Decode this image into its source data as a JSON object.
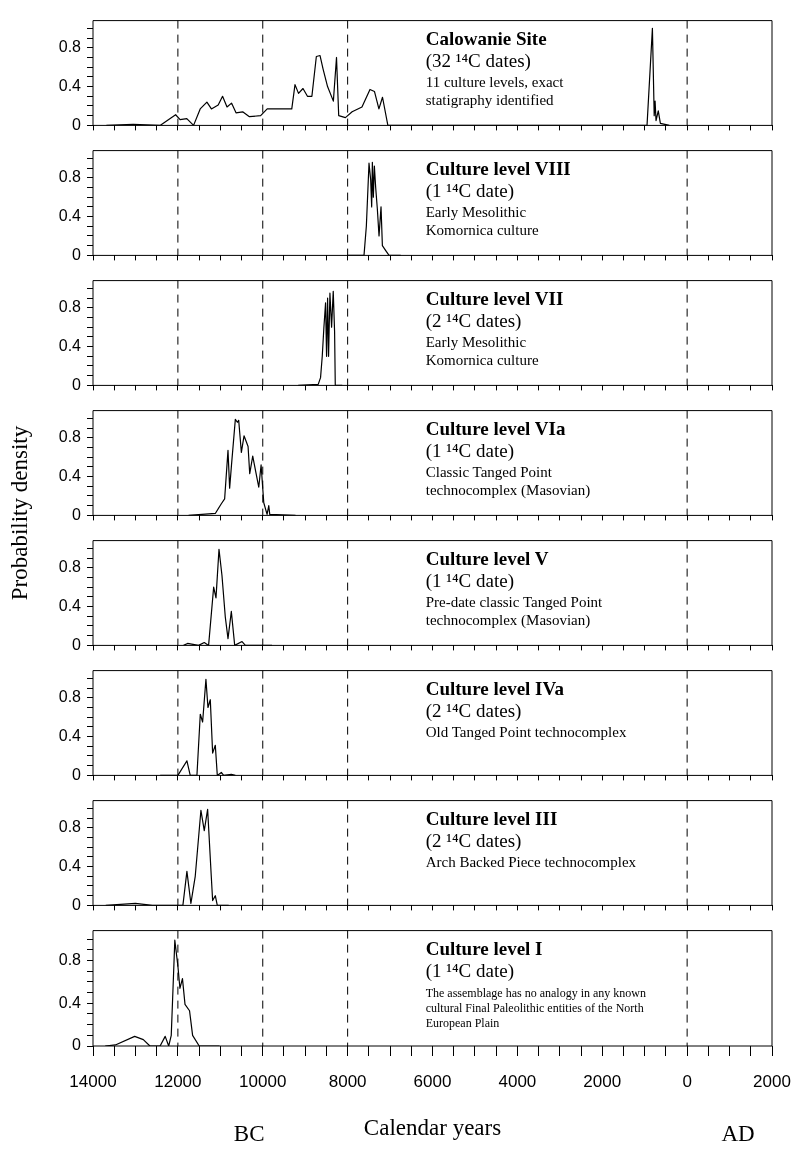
{
  "chart_data": [
    {
      "type": "line",
      "title": "Calowanie Site",
      "subtitle": "(32 ¹⁴C dates)",
      "annotations": [
        "11 culture levels, exact",
        "statigraphy identified"
      ],
      "color": "#000000",
      "marker": "none",
      "tick_labels": "y",
      "xlim": [
        -14000,
        2000
      ],
      "ylim": [
        0,
        1.08
      ],
      "xticks": [
        {
          "value": -14000,
          "label": null
        },
        {
          "value": -13500,
          "label": null
        },
        {
          "value": -13000,
          "label": null
        },
        {
          "value": -12500,
          "label": null
        },
        {
          "value": -12000,
          "label": null
        },
        {
          "value": -11500,
          "label": null
        },
        {
          "value": -11000,
          "label": null
        },
        {
          "value": -10500,
          "label": null
        },
        {
          "value": -10000,
          "label": null
        },
        {
          "value": -9500,
          "label": null
        },
        {
          "value": -9000,
          "label": null
        },
        {
          "value": -8500,
          "label": null
        },
        {
          "value": -8000,
          "label": null
        },
        {
          "value": -7500,
          "label": null
        },
        {
          "value": -7000,
          "label": null
        },
        {
          "value": -6500,
          "label": null
        },
        {
          "value": -6000,
          "label": null
        },
        {
          "value": -5500,
          "label": null
        },
        {
          "value": -5000,
          "label": null
        },
        {
          "value": -4500,
          "label": null
        },
        {
          "value": -4000,
          "label": null
        },
        {
          "value": -3500,
          "label": null
        },
        {
          "value": -3000,
          "label": null
        },
        {
          "value": -2500,
          "label": null
        },
        {
          "value": -2000,
          "label": null
        },
        {
          "value": -1500,
          "label": null
        },
        {
          "value": -1000,
          "label": null
        },
        {
          "value": -500,
          "label": null
        },
        {
          "value": 0,
          "label": null
        },
        {
          "value": 500,
          "label": null
        },
        {
          "value": 1000,
          "label": null
        },
        {
          "value": 1500,
          "label": null
        },
        {
          "value": 2000,
          "label": null
        }
      ],
      "yticks": [
        0,
        {
          "value": 0.1,
          "label": null
        },
        {
          "value": 0.2,
          "label": null
        },
        {
          "value": 0.3,
          "label": null
        },
        0.4,
        {
          "value": 0.5,
          "label": null
        },
        {
          "value": 0.6,
          "label": null
        },
        {
          "value": 0.7,
          "label": null
        },
        0.8,
        {
          "value": 0.9,
          "label": null
        },
        {
          "value": 1.0,
          "label": null
        }
      ],
      "ref_lines": [
        {
          "axis": "x",
          "value": -12000,
          "line_style": "dashed"
        },
        {
          "axis": "x",
          "value": -10000,
          "line_style": "dashed"
        },
        {
          "axis": "x",
          "value": -8000,
          "line_style": "dashed"
        },
        {
          "axis": "x",
          "value": 0,
          "line_style": "dashed"
        }
      ],
      "x": [
        -13685,
        -13053,
        -12420,
        -12053,
        -11947,
        -11790,
        -11630,
        -11474,
        -11316,
        -11210,
        -11050,
        -10947,
        -10842,
        -10736,
        -10630,
        -10473,
        -10315,
        -10050,
        -9895,
        -9684,
        -9316,
        -9240,
        -9157,
        -9052,
        -8947,
        -8842,
        -8737,
        -8650,
        -8578,
        -8473,
        -8336,
        -8262,
        -8210,
        -8052,
        -7894,
        -7662,
        -7473,
        -7368,
        -7263,
        -7178,
        -7052,
        -6735,
        -945,
        -818,
        -776,
        -755,
        -733,
        -680,
        -630,
        -524,
        -420
      ],
      "values": [
        0,
        0.01,
        0,
        0.11,
        0.06,
        0.07,
        0,
        0.17,
        0.24,
        0.17,
        0.21,
        0.3,
        0.19,
        0.23,
        0.13,
        0.14,
        0.09,
        0.1,
        0.17,
        0.17,
        0.17,
        0.42,
        0.33,
        0.38,
        0.3,
        0.3,
        0.71,
        0.72,
        0.58,
        0.4,
        0.25,
        0.7,
        0.1,
        0.08,
        0.14,
        0.19,
        0.37,
        0.35,
        0.17,
        0.29,
        0,
        0,
        0,
        1.0,
        0.1,
        0.25,
        0.05,
        0.15,
        0.02,
        0.01,
        0
      ]
    },
    {
      "type": "line",
      "title": "Culture level VIII",
      "subtitle": "(1 ¹⁴C date)",
      "annotations": [
        "Early Mesolithic",
        "Komornica culture"
      ],
      "color": "#000000",
      "marker": "none",
      "tick_labels": "y",
      "xlim": [
        -14000,
        2000
      ],
      "ylim": [
        0,
        1.08
      ],
      "xticks": [
        {
          "value": -14000,
          "label": null
        },
        {
          "value": -13500,
          "label": null
        },
        {
          "value": -13000,
          "label": null
        },
        {
          "value": -12500,
          "label": null
        },
        {
          "value": -12000,
          "label": null
        },
        {
          "value": -11500,
          "label": null
        },
        {
          "value": -11000,
          "label": null
        },
        {
          "value": -10500,
          "label": null
        },
        {
          "value": -10000,
          "label": null
        },
        {
          "value": -9500,
          "label": null
        },
        {
          "value": -9000,
          "label": null
        },
        {
          "value": -8500,
          "label": null
        },
        {
          "value": -8000,
          "label": null
        },
        {
          "value": -7500,
          "label": null
        },
        {
          "value": -7000,
          "label": null
        },
        {
          "value": -6500,
          "label": null
        },
        {
          "value": -6000,
          "label": null
        },
        {
          "value": -5500,
          "label": null
        },
        {
          "value": -5000,
          "label": null
        },
        {
          "value": -4500,
          "label": null
        },
        {
          "value": -4000,
          "label": null
        },
        {
          "value": -3500,
          "label": null
        },
        {
          "value": -3000,
          "label": null
        },
        {
          "value": -2500,
          "label": null
        },
        {
          "value": -2000,
          "label": null
        },
        {
          "value": -1500,
          "label": null
        },
        {
          "value": -1000,
          "label": null
        },
        {
          "value": -500,
          "label": null
        },
        {
          "value": 0,
          "label": null
        },
        {
          "value": 500,
          "label": null
        },
        {
          "value": 1000,
          "label": null
        },
        {
          "value": 1500,
          "label": null
        },
        {
          "value": 2000,
          "label": null
        }
      ],
      "yticks": [
        0,
        {
          "value": 0.1,
          "label": null
        },
        {
          "value": 0.2,
          "label": null
        },
        {
          "value": 0.3,
          "label": null
        },
        0.4,
        {
          "value": 0.5,
          "label": null
        },
        {
          "value": 0.6,
          "label": null
        },
        {
          "value": 0.7,
          "label": null
        },
        0.8,
        {
          "value": 0.9,
          "label": null
        },
        {
          "value": 1.0,
          "label": null
        }
      ],
      "ref_lines": [
        {
          "axis": "x",
          "value": -12000,
          "line_style": "dashed"
        },
        {
          "axis": "x",
          "value": -10000,
          "line_style": "dashed"
        },
        {
          "axis": "x",
          "value": -8000,
          "line_style": "dashed"
        },
        {
          "axis": "x",
          "value": 0,
          "line_style": "dashed"
        }
      ],
      "x": [
        -8000,
        -7614,
        -7559,
        -7496,
        -7457,
        -7433,
        -7417,
        -7394,
        -7370,
        -7339,
        -7300,
        -7260,
        -7213,
        -7181,
        -7102,
        -7024,
        -6748
      ],
      "values": [
        0,
        0,
        0.3,
        0.95,
        0.78,
        0.5,
        0.96,
        0.6,
        0.92,
        0.7,
        0.48,
        0.2,
        0.5,
        0.1,
        0.05,
        0,
        0
      ]
    },
    {
      "type": "line",
      "title": "Culture level VII",
      "subtitle": "(2 ¹⁴C dates)",
      "annotations": [
        "Early Mesolithic",
        "Komornica culture"
      ],
      "color": "#000000",
      "marker": "none",
      "tick_labels": "y",
      "xlim": [
        -14000,
        2000
      ],
      "ylim": [
        0,
        1.08
      ],
      "xticks": [
        {
          "value": -14000,
          "label": null
        },
        {
          "value": -13500,
          "label": null
        },
        {
          "value": -13000,
          "label": null
        },
        {
          "value": -12500,
          "label": null
        },
        {
          "value": -12000,
          "label": null
        },
        {
          "value": -11500,
          "label": null
        },
        {
          "value": -11000,
          "label": null
        },
        {
          "value": -10500,
          "label": null
        },
        {
          "value": -10000,
          "label": null
        },
        {
          "value": -9500,
          "label": null
        },
        {
          "value": -9000,
          "label": null
        },
        {
          "value": -8500,
          "label": null
        },
        {
          "value": -8000,
          "label": null
        },
        {
          "value": -7500,
          "label": null
        },
        {
          "value": -7000,
          "label": null
        },
        {
          "value": -6500,
          "label": null
        },
        {
          "value": -6000,
          "label": null
        },
        {
          "value": -5500,
          "label": null
        },
        {
          "value": -5000,
          "label": null
        },
        {
          "value": -4500,
          "label": null
        },
        {
          "value": -4000,
          "label": null
        },
        {
          "value": -3500,
          "label": null
        },
        {
          "value": -3000,
          "label": null
        },
        {
          "value": -2500,
          "label": null
        },
        {
          "value": -2000,
          "label": null
        },
        {
          "value": -1500,
          "label": null
        },
        {
          "value": -1000,
          "label": null
        },
        {
          "value": -500,
          "label": null
        },
        {
          "value": 0,
          "label": null
        },
        {
          "value": 500,
          "label": null
        },
        {
          "value": 1000,
          "label": null
        },
        {
          "value": 1500,
          "label": null
        },
        {
          "value": 2000,
          "label": null
        }
      ],
      "yticks": [
        0,
        {
          "value": 0.1,
          "label": null
        },
        {
          "value": 0.2,
          "label": null
        },
        {
          "value": 0.3,
          "label": null
        },
        0.4,
        {
          "value": 0.5,
          "label": null
        },
        {
          "value": 0.6,
          "label": null
        },
        {
          "value": 0.7,
          "label": null
        },
        0.8,
        {
          "value": 0.9,
          "label": null
        },
        {
          "value": 1.0,
          "label": null
        }
      ],
      "ref_lines": [
        {
          "axis": "x",
          "value": -12000,
          "line_style": "dashed"
        },
        {
          "axis": "x",
          "value": -10000,
          "line_style": "dashed"
        },
        {
          "axis": "x",
          "value": -8000,
          "line_style": "dashed"
        },
        {
          "axis": "x",
          "value": 0,
          "line_style": "dashed"
        }
      ],
      "x": [
        -9165,
        -8693,
        -8638,
        -8598,
        -8559,
        -8520,
        -8496,
        -8472,
        -8449,
        -8417,
        -8378,
        -8339,
        -8307,
        -8291,
        -8126
      ],
      "values": [
        0,
        0.01,
        0.08,
        0.3,
        0.6,
        0.85,
        0.3,
        0.9,
        0.3,
        0.95,
        0.6,
        0.97,
        0.55,
        0,
        0
      ]
    },
    {
      "type": "line",
      "title": "Culture level VIa",
      "subtitle": "(1 ¹⁴C date)",
      "annotations": [
        "Classic Tanged Point",
        "technocomplex (Masovian)"
      ],
      "ylabel": "Probability density",
      "color": "#000000",
      "marker": "none",
      "tick_labels": "y",
      "xlim": [
        -14000,
        2000
      ],
      "ylim": [
        0,
        1.08
      ],
      "xticks": [
        {
          "value": -14000,
          "label": null
        },
        {
          "value": -13500,
          "label": null
        },
        {
          "value": -13000,
          "label": null
        },
        {
          "value": -12500,
          "label": null
        },
        {
          "value": -12000,
          "label": null
        },
        {
          "value": -11500,
          "label": null
        },
        {
          "value": -11000,
          "label": null
        },
        {
          "value": -10500,
          "label": null
        },
        {
          "value": -10000,
          "label": null
        },
        {
          "value": -9500,
          "label": null
        },
        {
          "value": -9000,
          "label": null
        },
        {
          "value": -8500,
          "label": null
        },
        {
          "value": -8000,
          "label": null
        },
        {
          "value": -7500,
          "label": null
        },
        {
          "value": -7000,
          "label": null
        },
        {
          "value": -6500,
          "label": null
        },
        {
          "value": -6000,
          "label": null
        },
        {
          "value": -5500,
          "label": null
        },
        {
          "value": -5000,
          "label": null
        },
        {
          "value": -4500,
          "label": null
        },
        {
          "value": -4000,
          "label": null
        },
        {
          "value": -3500,
          "label": null
        },
        {
          "value": -3000,
          "label": null
        },
        {
          "value": -2500,
          "label": null
        },
        {
          "value": -2000,
          "label": null
        },
        {
          "value": -1500,
          "label": null
        },
        {
          "value": -1000,
          "label": null
        },
        {
          "value": -500,
          "label": null
        },
        {
          "value": 0,
          "label": null
        },
        {
          "value": 500,
          "label": null
        },
        {
          "value": 1000,
          "label": null
        },
        {
          "value": 1500,
          "label": null
        },
        {
          "value": 2000,
          "label": null
        }
      ],
      "yticks": [
        0,
        {
          "value": 0.1,
          "label": null
        },
        {
          "value": 0.2,
          "label": null
        },
        {
          "value": 0.3,
          "label": null
        },
        0.4,
        {
          "value": 0.5,
          "label": null
        },
        {
          "value": 0.6,
          "label": null
        },
        {
          "value": 0.7,
          "label": null
        },
        0.8,
        {
          "value": 0.9,
          "label": null
        },
        {
          "value": 1.0,
          "label": null
        }
      ],
      "ref_lines": [
        {
          "axis": "x",
          "value": -12000,
          "line_style": "dashed"
        },
        {
          "axis": "x",
          "value": -10000,
          "line_style": "dashed"
        },
        {
          "axis": "x",
          "value": -8000,
          "line_style": "dashed"
        },
        {
          "axis": "x",
          "value": 0,
          "line_style": "dashed"
        }
      ],
      "x": [
        -11748,
        -11118,
        -10976,
        -10898,
        -10819,
        -10780,
        -10740,
        -10646,
        -10598,
        -10567,
        -10504,
        -10441,
        -10346,
        -10307,
        -10236,
        -10094,
        -10039,
        -9976,
        -9898,
        -9858,
        -9835,
        -9228
      ],
      "values": [
        0,
        0.02,
        0.12,
        0.17,
        0.67,
        0.28,
        0.5,
        0.99,
        0.96,
        0.98,
        0.65,
        0.82,
        0.71,
        0.43,
        0.61,
        0.29,
        0.52,
        0.13,
        0.01,
        0.1,
        0.01,
        0
      ]
    },
    {
      "type": "line",
      "title": "Culture level V",
      "subtitle": "(1 ¹⁴C date)",
      "annotations": [
        "Pre-date classic Tanged Point",
        "technocomplex (Masovian)"
      ],
      "color": "#000000",
      "marker": "none",
      "tick_labels": "y",
      "xlim": [
        -14000,
        2000
      ],
      "ylim": [
        0,
        1.08
      ],
      "xticks": [
        {
          "value": -14000,
          "label": null
        },
        {
          "value": -13500,
          "label": null
        },
        {
          "value": -13000,
          "label": null
        },
        {
          "value": -12500,
          "label": null
        },
        {
          "value": -12000,
          "label": null
        },
        {
          "value": -11500,
          "label": null
        },
        {
          "value": -11000,
          "label": null
        },
        {
          "value": -10500,
          "label": null
        },
        {
          "value": -10000,
          "label": null
        },
        {
          "value": -9500,
          "label": null
        },
        {
          "value": -9000,
          "label": null
        },
        {
          "value": -8500,
          "label": null
        },
        {
          "value": -8000,
          "label": null
        },
        {
          "value": -7500,
          "label": null
        },
        {
          "value": -7000,
          "label": null
        },
        {
          "value": -6500,
          "label": null
        },
        {
          "value": -6000,
          "label": null
        },
        {
          "value": -5500,
          "label": null
        },
        {
          "value": -5000,
          "label": null
        },
        {
          "value": -4500,
          "label": null
        },
        {
          "value": -4000,
          "label": null
        },
        {
          "value": -3500,
          "label": null
        },
        {
          "value": -3000,
          "label": null
        },
        {
          "value": -2500,
          "label": null
        },
        {
          "value": -2000,
          "label": null
        },
        {
          "value": -1500,
          "label": null
        },
        {
          "value": -1000,
          "label": null
        },
        {
          "value": -500,
          "label": null
        },
        {
          "value": 0,
          "label": null
        },
        {
          "value": 500,
          "label": null
        },
        {
          "value": 1000,
          "label": null
        },
        {
          "value": 1500,
          "label": null
        },
        {
          "value": 2000,
          "label": null
        }
      ],
      "yticks": [
        0,
        {
          "value": 0.1,
          "label": null
        },
        {
          "value": 0.2,
          "label": null
        },
        {
          "value": 0.3,
          "label": null
        },
        0.4,
        {
          "value": 0.5,
          "label": null
        },
        {
          "value": 0.6,
          "label": null
        },
        {
          "value": 0.7,
          "label": null
        },
        0.8,
        {
          "value": 0.9,
          "label": null
        },
        {
          "value": 1.0,
          "label": null
        }
      ],
      "ref_lines": [
        {
          "axis": "x",
          "value": -12000,
          "line_style": "dashed"
        },
        {
          "axis": "x",
          "value": -10000,
          "line_style": "dashed"
        },
        {
          "axis": "x",
          "value": -8000,
          "line_style": "dashed"
        },
        {
          "axis": "x",
          "value": 0,
          "line_style": "dashed"
        }
      ],
      "x": [
        -11866,
        -11772,
        -11512,
        -11378,
        -11276,
        -11157,
        -11102,
        -11031,
        -10961,
        -10882,
        -10819,
        -10740,
        -10661,
        -10488,
        -10409,
        -9780
      ],
      "values": [
        0,
        0.02,
        0,
        0.03,
        0,
        0.6,
        0.49,
        0.99,
        0.72,
        0.29,
        0.07,
        0.35,
        0,
        0.04,
        0,
        0
      ]
    },
    {
      "type": "line",
      "title": "Culture level IVa",
      "subtitle": "(2 ¹⁴C dates)",
      "annotations": [
        "Old Tanged Point technocomplex"
      ],
      "color": "#000000",
      "marker": "none",
      "tick_labels": "y",
      "xlim": [
        -14000,
        2000
      ],
      "ylim": [
        0,
        1.08
      ],
      "xticks": [
        {
          "value": -14000,
          "label": null
        },
        {
          "value": -13500,
          "label": null
        },
        {
          "value": -13000,
          "label": null
        },
        {
          "value": -12500,
          "label": null
        },
        {
          "value": -12000,
          "label": null
        },
        {
          "value": -11500,
          "label": null
        },
        {
          "value": -11000,
          "label": null
        },
        {
          "value": -10500,
          "label": null
        },
        {
          "value": -10000,
          "label": null
        },
        {
          "value": -9500,
          "label": null
        },
        {
          "value": -9000,
          "label": null
        },
        {
          "value": -8500,
          "label": null
        },
        {
          "value": -8000,
          "label": null
        },
        {
          "value": -7500,
          "label": null
        },
        {
          "value": -7000,
          "label": null
        },
        {
          "value": -6500,
          "label": null
        },
        {
          "value": -6000,
          "label": null
        },
        {
          "value": -5500,
          "label": null
        },
        {
          "value": -5000,
          "label": null
        },
        {
          "value": -4500,
          "label": null
        },
        {
          "value": -4000,
          "label": null
        },
        {
          "value": -3500,
          "label": null
        },
        {
          "value": -3000,
          "label": null
        },
        {
          "value": -2500,
          "label": null
        },
        {
          "value": -2000,
          "label": null
        },
        {
          "value": -1500,
          "label": null
        },
        {
          "value": -1000,
          "label": null
        },
        {
          "value": -500,
          "label": null
        },
        {
          "value": 0,
          "label": null
        },
        {
          "value": 500,
          "label": null
        },
        {
          "value": 1000,
          "label": null
        },
        {
          "value": 1500,
          "label": null
        },
        {
          "value": 2000,
          "label": null
        }
      ],
      "yticks": [
        0,
        {
          "value": 0.1,
          "label": null
        },
        {
          "value": 0.2,
          "label": null
        },
        {
          "value": 0.3,
          "label": null
        },
        0.4,
        {
          "value": 0.5,
          "label": null
        },
        {
          "value": 0.6,
          "label": null
        },
        {
          "value": 0.7,
          "label": null
        },
        0.8,
        {
          "value": 0.9,
          "label": null
        },
        {
          "value": 1.0,
          "label": null
        }
      ],
      "ref_lines": [
        {
          "axis": "x",
          "value": -12000,
          "line_style": "dashed"
        },
        {
          "axis": "x",
          "value": -10000,
          "line_style": "dashed"
        },
        {
          "axis": "x",
          "value": -8000,
          "line_style": "dashed"
        },
        {
          "axis": "x",
          "value": 0,
          "line_style": "dashed"
        }
      ],
      "x": [
        -12417,
        -12000,
        -11787,
        -11709,
        -11551,
        -11472,
        -11417,
        -11339,
        -11291,
        -11236,
        -11181,
        -11118,
        -11071,
        -10976,
        -10921,
        -10740,
        -10646
      ],
      "values": [
        0,
        0,
        0.15,
        0,
        0,
        0.63,
        0.55,
        0.99,
        0.7,
        0.78,
        0.23,
        0.31,
        0,
        0.03,
        0,
        0.01,
        0
      ]
    },
    {
      "type": "line",
      "title": "Culture level III",
      "subtitle": "(2 ¹⁴C dates)",
      "annotations": [
        "Arch Backed Piece technocomplex"
      ],
      "color": "#000000",
      "marker": "none",
      "tick_labels": "y",
      "xlim": [
        -14000,
        2000
      ],
      "ylim": [
        0,
        1.08
      ],
      "xticks": [
        {
          "value": -14000,
          "label": null
        },
        {
          "value": -13500,
          "label": null
        },
        {
          "value": -13000,
          "label": null
        },
        {
          "value": -12500,
          "label": null
        },
        {
          "value": -12000,
          "label": null
        },
        {
          "value": -11500,
          "label": null
        },
        {
          "value": -11000,
          "label": null
        },
        {
          "value": -10500,
          "label": null
        },
        {
          "value": -10000,
          "label": null
        },
        {
          "value": -9500,
          "label": null
        },
        {
          "value": -9000,
          "label": null
        },
        {
          "value": -8500,
          "label": null
        },
        {
          "value": -8000,
          "label": null
        },
        {
          "value": -7500,
          "label": null
        },
        {
          "value": -7000,
          "label": null
        },
        {
          "value": -6500,
          "label": null
        },
        {
          "value": -6000,
          "label": null
        },
        {
          "value": -5500,
          "label": null
        },
        {
          "value": -5000,
          "label": null
        },
        {
          "value": -4500,
          "label": null
        },
        {
          "value": -4000,
          "label": null
        },
        {
          "value": -3500,
          "label": null
        },
        {
          "value": -3000,
          "label": null
        },
        {
          "value": -2500,
          "label": null
        },
        {
          "value": -2000,
          "label": null
        },
        {
          "value": -1500,
          "label": null
        },
        {
          "value": -1000,
          "label": null
        },
        {
          "value": -500,
          "label": null
        },
        {
          "value": 0,
          "label": null
        },
        {
          "value": 500,
          "label": null
        },
        {
          "value": 1000,
          "label": null
        },
        {
          "value": 1500,
          "label": null
        },
        {
          "value": 2000,
          "label": null
        }
      ],
      "yticks": [
        0,
        {
          "value": 0.1,
          "label": null
        },
        {
          "value": 0.2,
          "label": null
        },
        {
          "value": 0.3,
          "label": null
        },
        0.4,
        {
          "value": 0.5,
          "label": null
        },
        {
          "value": 0.6,
          "label": null
        },
        {
          "value": 0.7,
          "label": null
        },
        0.8,
        {
          "value": 0.9,
          "label": null
        },
        {
          "value": 1.0,
          "label": null
        }
      ],
      "ref_lines": [
        {
          "axis": "x",
          "value": -12000,
          "line_style": "dashed"
        },
        {
          "axis": "x",
          "value": -10000,
          "line_style": "dashed"
        },
        {
          "axis": "x",
          "value": -8000,
          "line_style": "dashed"
        },
        {
          "axis": "x",
          "value": 0,
          "line_style": "dashed"
        }
      ],
      "x": [
        -13700,
        -13000,
        -12600,
        -11882,
        -11787,
        -11693,
        -11591,
        -11457,
        -11378,
        -11299,
        -11213,
        -11181,
        -11118,
        -11071,
        -10803
      ],
      "values": [
        0,
        0.02,
        0,
        0,
        0.35,
        0.02,
        0.3,
        0.98,
        0.77,
        0.99,
        0.3,
        0.05,
        0.1,
        0,
        0
      ]
    },
    {
      "type": "line",
      "title": "Culture level I",
      "subtitle": "(1 ¹⁴C date)",
      "annotations": [
        "The assemblage has no analogy in any known",
        "cultural Final Paleolithic entities of the North",
        "European Plain",
        "BC",
        "AD"
      ],
      "xlabel": "Calendar years",
      "color": "#000000",
      "marker": "none",
      "xlim": [
        -14000,
        2000
      ],
      "ylim": [
        0,
        1.08
      ],
      "xticks": [
        {
          "value": -14000,
          "label": "14000"
        },
        {
          "value": -13500,
          "label": null
        },
        {
          "value": -13000,
          "label": null
        },
        {
          "value": -12500,
          "label": null
        },
        {
          "value": -12000,
          "label": "12000"
        },
        {
          "value": -11500,
          "label": null
        },
        {
          "value": -11000,
          "label": null
        },
        {
          "value": -10500,
          "label": null
        },
        {
          "value": -10000,
          "label": "10000"
        },
        {
          "value": -9500,
          "label": null
        },
        {
          "value": -9000,
          "label": null
        },
        {
          "value": -8500,
          "label": null
        },
        {
          "value": -8000,
          "label": "8000"
        },
        {
          "value": -7500,
          "label": null
        },
        {
          "value": -7000,
          "label": null
        },
        {
          "value": -6500,
          "label": null
        },
        {
          "value": -6000,
          "label": "6000"
        },
        {
          "value": -5500,
          "label": null
        },
        {
          "value": -5000,
          "label": null
        },
        {
          "value": -4500,
          "label": null
        },
        {
          "value": -4000,
          "label": "4000"
        },
        {
          "value": -3500,
          "label": null
        },
        {
          "value": -3000,
          "label": null
        },
        {
          "value": -2500,
          "label": null
        },
        {
          "value": -2000,
          "label": "2000"
        },
        {
          "value": -1500,
          "label": null
        },
        {
          "value": -1000,
          "label": null
        },
        {
          "value": -500,
          "label": null
        },
        0,
        {
          "value": 500,
          "label": null
        },
        {
          "value": 1000,
          "label": null
        },
        {
          "value": 1500,
          "label": null
        },
        2000
      ],
      "yticks": [
        0,
        {
          "value": 0.1,
          "label": null
        },
        {
          "value": 0.2,
          "label": null
        },
        {
          "value": 0.3,
          "label": null
        },
        0.4,
        {
          "value": 0.5,
          "label": null
        },
        {
          "value": 0.6,
          "label": null
        },
        {
          "value": 0.7,
          "label": null
        },
        0.8,
        {
          "value": 0.9,
          "label": null
        },
        {
          "value": 1.0,
          "label": null
        }
      ],
      "ref_lines": [
        {
          "axis": "x",
          "value": -12000,
          "line_style": "dashed"
        },
        {
          "axis": "x",
          "value": -10000,
          "line_style": "dashed"
        },
        {
          "axis": "x",
          "value": -8000,
          "line_style": "dashed"
        },
        {
          "axis": "x",
          "value": 0,
          "line_style": "dashed"
        }
      ],
      "x": [
        -13713,
        -13473,
        -13018,
        -12814,
        -12659,
        -12419,
        -12299,
        -12216,
        -12156,
        -12072,
        -12000,
        -11952,
        -11892,
        -11832,
        -11725,
        -11653,
        -11497,
        -11018
      ],
      "values": [
        0,
        0.01,
        0.09,
        0.06,
        0,
        0,
        0.09,
        0,
        0.1,
        0.99,
        0.75,
        0.54,
        0.63,
        0.39,
        0.33,
        0.1,
        0,
        0
      ]
    }
  ]
}
